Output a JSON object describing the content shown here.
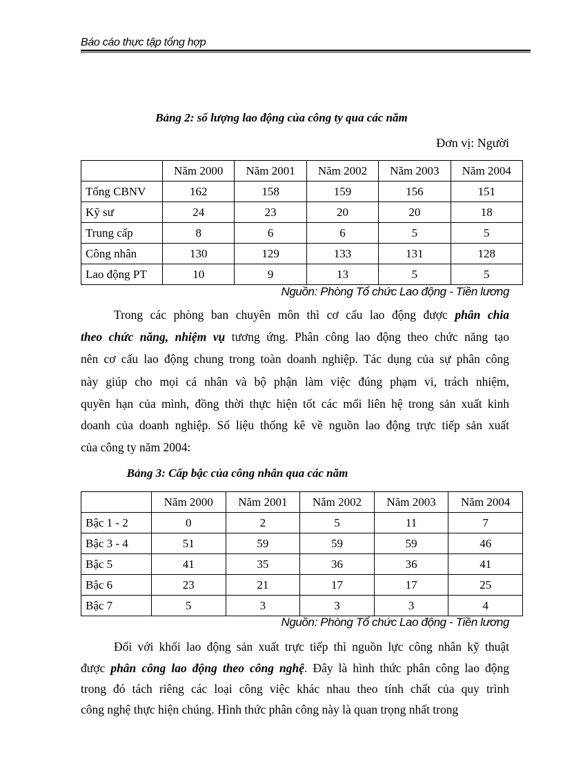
{
  "header": {
    "title": "Báo cáo thực tập tổng hợp"
  },
  "table2": {
    "caption": "Bảng 2: số lượng lao động của công ty qua các năm",
    "unit": "Đơn vị: Người",
    "columns": [
      "",
      "Năm 2000",
      "Năm 2001",
      "Năm 2002",
      "Năm 2003",
      "Năm 2004"
    ],
    "rows": [
      [
        "Tổng CBNV",
        "162",
        "158",
        "159",
        "156",
        "151"
      ],
      [
        "Kỹ sư",
        "24",
        "23",
        "20",
        "20",
        "18"
      ],
      [
        "Trung cấp",
        "8",
        "6",
        "6",
        "5",
        "5"
      ],
      [
        "Công nhân",
        "130",
        "129",
        "133",
        "131",
        "128"
      ],
      [
        "Lao động PT",
        "10",
        "9",
        "13",
        "5",
        "5"
      ]
    ],
    "source": "Nguồn: Phòng Tổ chức Lao động - Tiền lương"
  },
  "paragraph1": {
    "l1a": "Trong các phòng ban chuyên môn thì cơ cấu lao động được ",
    "l1b": "phân chia",
    "l2a": "theo chức năng, nhiệm vụ",
    "l2b": " tương ứng. Phân công lao động theo chức năng tạo",
    "l3": "nên cơ cấu lao động chung trong toàn doanh nghiệp. Tác dụng của sự phân công",
    "l4": "này giúp cho mọi cá nhân và bộ phận làm việc đúng phạm vi, trách nhiệm,",
    "l5": "quyền hạn của mình, đồng thời thực hiện tốt các mối liên hệ trong sản xuất kinh",
    "l6": "doanh của doanh nghiệp. Số liệu thống kê về nguồn lao động trực tiếp sản xuất",
    "l7": "của công ty năm 2004:"
  },
  "table3": {
    "caption": "Bảng 3: Cấp bậc của công nhân qua các năm",
    "columns": [
      "",
      "Năm 2000",
      "Năm 2001",
      "Năm 2002",
      "Năm 2003",
      "Năm 2004"
    ],
    "rows": [
      [
        "Bậc 1 - 2",
        "0",
        "2",
        "5",
        "11",
        "7"
      ],
      [
        "Bậc 3 - 4",
        "51",
        "59",
        "59",
        "59",
        "46"
      ],
      [
        "Bậc 5",
        "41",
        "35",
        "36",
        "36",
        "41"
      ],
      [
        "Bậc 6",
        "23",
        "21",
        "17",
        "17",
        "25"
      ],
      [
        "Bậc 7",
        "5",
        "3",
        "3",
        "3",
        "4"
      ]
    ],
    "source": "Nguồn: Phòng Tổ chức Lao động - Tiền lương"
  },
  "paragraph2": {
    "l1": "Đối với khối lao động sản xuất trực tiếp thì nguồn lực công nhân kỹ thuật",
    "l2a": "được ",
    "l2b": "phân công lao động theo công nghệ",
    "l2c": ". Đây là hình thức phân công lao động",
    "l3": "trong đó tách riêng các loại công việc khác nhau theo tính chất của quy trình",
    "l4": "công nghệ thực hiện chúng. Hình thức phân công này là quan trọng nhất trong"
  }
}
